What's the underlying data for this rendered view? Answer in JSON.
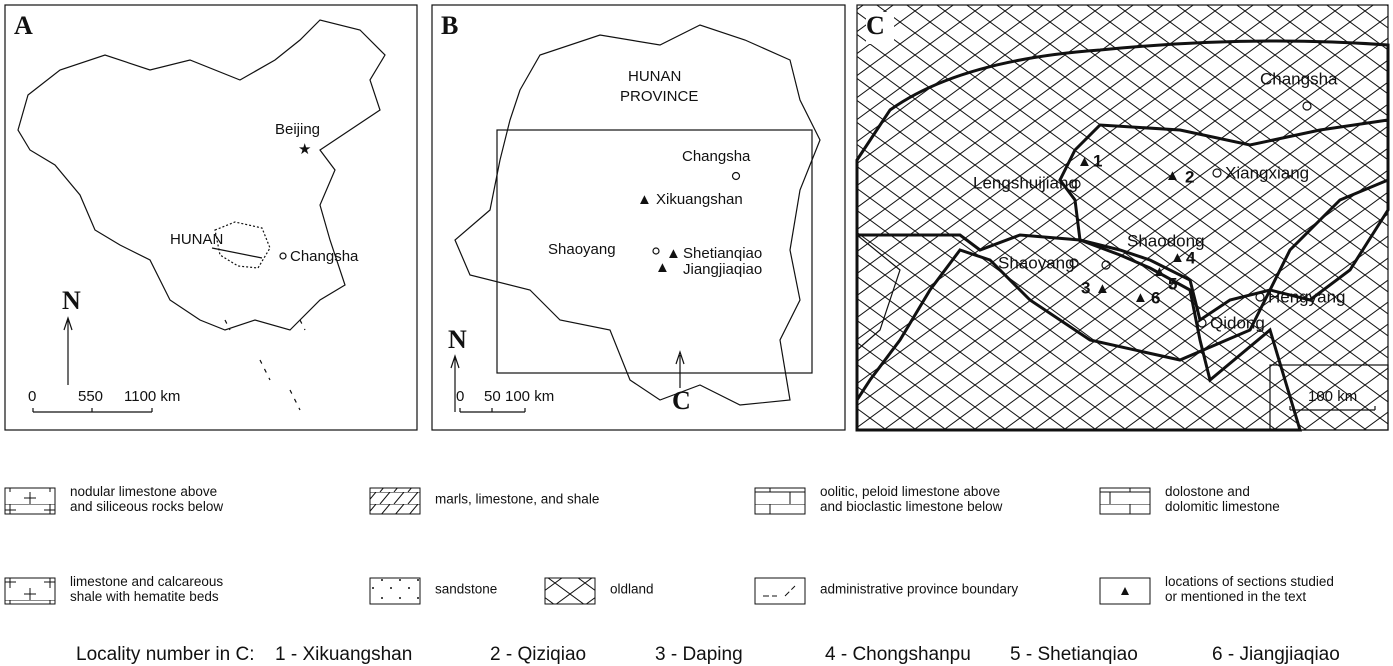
{
  "panel_a": {
    "label": "A",
    "beijing": "Beijing",
    "hunan": "HUNAN",
    "changsha": "Changsha",
    "north": "N",
    "scale": [
      "0",
      "550",
      "1100 km"
    ]
  },
  "panel_b": {
    "label": "B",
    "province": [
      "HUNAN",
      "PROVINCE"
    ],
    "changsha": "Changsha",
    "xikuangshan": "Xikuangshan",
    "shaoyang": "Shaoyang",
    "shetianqiao": "Shetianqiao",
    "jiangjiaqiao": "Jiangjiaqiao",
    "north": "N",
    "inset": "C",
    "scale": [
      "0",
      "50",
      "100 km"
    ]
  },
  "panel_c": {
    "label": "C",
    "changsha": "Changsha",
    "n1": "1",
    "lengshuijiang": "Lengshuijiang",
    "n2": "2",
    "xiangxiang": "Xiangxiang",
    "shaoyang": "Shaoyang",
    "shaodong": "Shaodong",
    "n4": "4",
    "n5": "5",
    "n3": "3",
    "n6": "6",
    "hengyang": "Hengyang",
    "qidong": "Qidong",
    "scale": "100 km"
  },
  "legend": [
    [
      "nodular limestone above",
      "and siliceous rocks below"
    ],
    [
      "marls, limestone, and shale"
    ],
    [
      "oolitic, peloid limestone above",
      "and bioclastic limestone below"
    ],
    [
      "dolostone and",
      "dolomitic limestone"
    ],
    [
      "limestone and calcareous",
      "shale with hematite beds"
    ],
    [
      "sandstone"
    ],
    [
      "oldland"
    ],
    [
      "administrative province boundary"
    ],
    [
      "locations of sections studied",
      "or mentioned in the text"
    ]
  ],
  "localities": {
    "title": "Locality number in C:",
    "items": [
      "1 - Xikuangshan",
      "2 - Qiziqiao",
      "3 - Daping",
      "4 - Chongshanpu",
      "5 - Shetianqiao",
      "6 - Jiangjiaqiao"
    ]
  }
}
